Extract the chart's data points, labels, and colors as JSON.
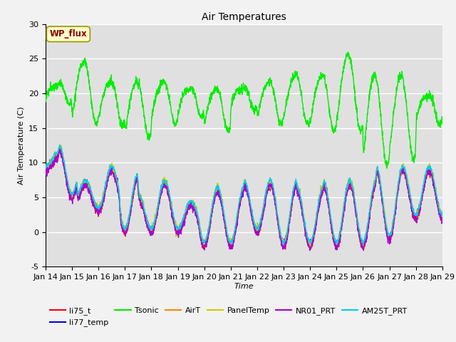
{
  "title": "Air Temperatures",
  "xlabel": "Time",
  "ylabel": "Air Temperature (C)",
  "xlim_days": [
    14,
    29
  ],
  "ylim": [
    -5,
    30
  ],
  "yticks": [
    -5,
    0,
    5,
    10,
    15,
    20,
    25,
    30
  ],
  "xtick_labels": [
    "Jan 14",
    "Jan 15",
    "Jan 16",
    "Jan 17",
    "Jan 18",
    "Jan 19",
    "Jan 20",
    "Jan 21",
    "Jan 22",
    "Jan 23",
    "Jan 24",
    "Jan 25",
    "Jan 26",
    "Jan 27",
    "Jan 28",
    "Jan 29"
  ],
  "legend_labels": [
    "li75_t",
    "li77_temp",
    "Tsonic",
    "AirT",
    "PanelTemp",
    "NR01_PRT",
    "AM25T_PRT"
  ],
  "legend_colors": [
    "#ff0000",
    "#0000dd",
    "#00ee00",
    "#ff8800",
    "#cccc00",
    "#aa00cc",
    "#00ccee"
  ],
  "wp_flux_text": "WP_flux",
  "wp_flux_bg": "#ffffcc",
  "wp_flux_border": "#999900",
  "wp_flux_textcolor": "#880000",
  "fig_bg": "#f2f2f2",
  "plot_bg": "#e0e0e0",
  "grid_color": "#ffffff"
}
